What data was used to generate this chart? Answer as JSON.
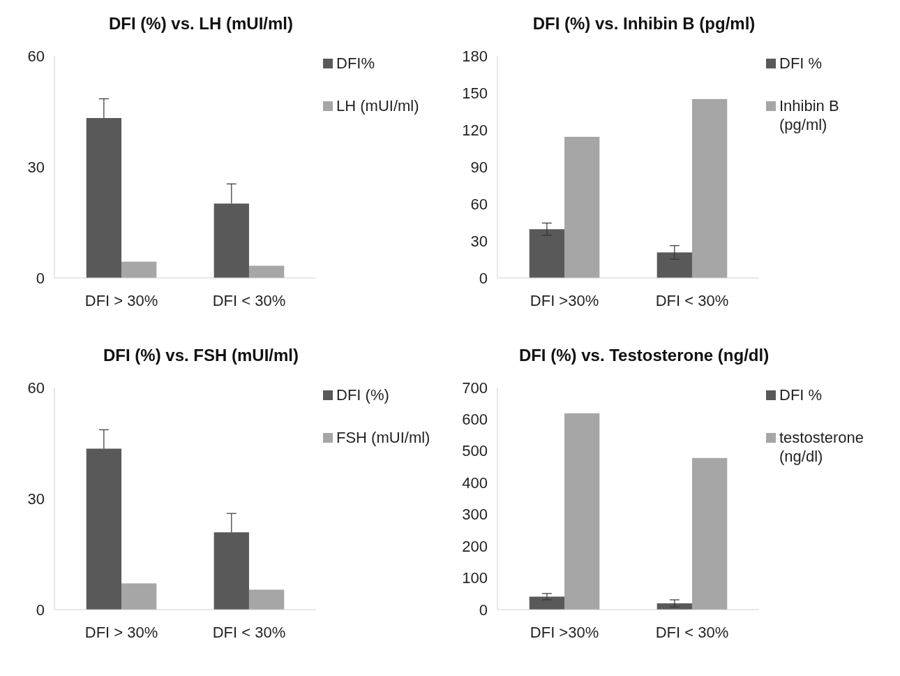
{
  "chart_data": [
    {
      "type": "bar",
      "title": "DFI (%) vs. LH (mUI/ml)",
      "categories": [
        "DFI > 30%",
        "DFI < 30%"
      ],
      "ylim": [
        0,
        60
      ],
      "yticks": [
        0,
        30,
        60
      ],
      "grid": false,
      "legend": "top right",
      "series": [
        {
          "name": "DFI%",
          "color": "#595959",
          "values": [
            43.2,
            20.1
          ],
          "errors": [
            [
              43.2,
              48.4
            ],
            [
              20.1,
              25.4
            ]
          ]
        },
        {
          "name": "LH (mUI/ml)",
          "color": "#a6a6a6",
          "values": [
            4.4,
            3.3
          ]
        }
      ]
    },
    {
      "type": "bar",
      "title": "DFI (%) vs. Inhibin B (pg/ml)",
      "categories": [
        "DFI >30%",
        "DFI < 30%"
      ],
      "ylim": [
        0,
        180
      ],
      "yticks": [
        0,
        30,
        60,
        90,
        120,
        150,
        180
      ],
      "grid": false,
      "legend": "top right",
      "series": [
        {
          "name": "DFI %",
          "color": "#595959",
          "values": [
            39.5,
            20.7
          ],
          "errors": [
            5,
            5.5
          ]
        },
        {
          "name": "Inhibin B (pg/ml)",
          "color": "#a6a6a6",
          "values": [
            114.4,
            145
          ]
        }
      ]
    },
    {
      "type": "bar",
      "title": "DFI (%) vs. FSH (mUI/ml)",
      "categories": [
        "DFI > 30%",
        "DFI < 30%"
      ],
      "ylim": [
        0,
        60
      ],
      "yticks": [
        0,
        30,
        60
      ],
      "grid": false,
      "legend": "top right",
      "series": [
        {
          "name": "DFI (%)",
          "color": "#595959",
          "values": [
            43.5,
            20.9
          ],
          "errors": [
            [
              43.5,
              48.6
            ],
            [
              20.9,
              26
            ]
          ]
        },
        {
          "name": "FSH (mUI/ml)",
          "color": "#a6a6a6",
          "values": [
            7.1,
            5.4
          ]
        }
      ]
    },
    {
      "type": "bar",
      "title": "DFI (%) vs. Testosterone (ng/dl)",
      "categories": [
        "DFI >30%",
        "DFI < 30%"
      ],
      "ylim": [
        0,
        700
      ],
      "yticks": [
        0,
        100,
        200,
        300,
        400,
        500,
        600,
        700
      ],
      "grid": false,
      "legend": "top right",
      "series": [
        {
          "name": "DFI %",
          "color": "#595959",
          "values": [
            41,
            20
          ],
          "errors": [
            10,
            11
          ]
        },
        {
          "name": "testosterone (ng/dl)",
          "color": "#a6a6a6",
          "values": [
            619,
            478
          ]
        }
      ]
    }
  ]
}
